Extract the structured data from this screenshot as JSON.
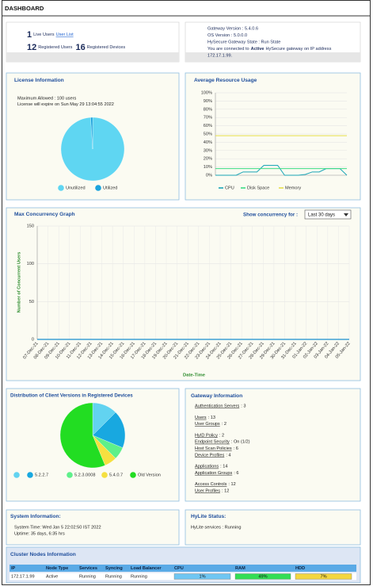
{
  "header": {
    "title": "DASHBOARD"
  },
  "summary": {
    "live_users": 1,
    "live_users_label": "Live Users",
    "user_list": "User List",
    "registered_users": 12,
    "registered_users_label": "Registered Users",
    "registered_devices": 16,
    "registered_devices_label": "Registered Devices"
  },
  "gateway_status": {
    "lines": [
      "Gateway Version : 5.4.0.6",
      "OS Version : 5.0.0.0",
      "HySecure Gateway State : Run State"
    ],
    "connected_prefix": "You are connected to",
    "connected_state": "Active",
    "connected_suffix": "HySecure gateway on IP address",
    "ip": "172.17.1.99."
  },
  "chart_data": [
    {
      "type": "pie",
      "title": "License Information",
      "annotations": [
        "Maximum Allowed : 100 users",
        "License will expire on Sun May 29 13:04:55 2022"
      ],
      "categories": [
        "Unutilized",
        "Utilized"
      ],
      "values": [
        99,
        1
      ],
      "colors": [
        "#5fd6f2",
        "#1ba3dd"
      ]
    },
    {
      "type": "line",
      "title": "Average Resource Usage",
      "ylim": [
        0,
        100
      ],
      "yticks": [
        {
          "value": 0,
          "label": "0%"
        },
        {
          "value": 10,
          "label": "10%"
        },
        {
          "value": 20,
          "label": "20%"
        },
        {
          "value": 30,
          "label": "30%"
        },
        {
          "value": 40,
          "label": "40%"
        },
        {
          "value": 50,
          "label": "50%"
        },
        {
          "value": 60,
          "label": "60%"
        },
        {
          "value": 70,
          "label": "70%"
        },
        {
          "value": 80,
          "label": "80%"
        },
        {
          "value": 90,
          "label": "90%"
        },
        {
          "value": 100,
          "label": "100%"
        }
      ],
      "grid": true,
      "series": [
        {
          "name": "CPU",
          "color": "#1aa6b7",
          "values": [
            0,
            0,
            0,
            0,
            4,
            4,
            4,
            12,
            12,
            12,
            0,
            0,
            0,
            1,
            4,
            4,
            8,
            8,
            8,
            0
          ]
        },
        {
          "name": "Disk Space",
          "color": "#3ddc84",
          "values": [
            8,
            8,
            8,
            8,
            8,
            8,
            8,
            8,
            8,
            8,
            8,
            8,
            8,
            8,
            8,
            8,
            8,
            8,
            8,
            8
          ]
        },
        {
          "name": "Memory",
          "color": "#e6df4a",
          "values": [
            48,
            48,
            48,
            48,
            48,
            48,
            48,
            48,
            48,
            48,
            48,
            48,
            48,
            48,
            48,
            48,
            48,
            48,
            48,
            48
          ]
        }
      ]
    },
    {
      "type": "line",
      "title": "Max Concurrency Graph",
      "control_label": "Show concurrency for :",
      "control_value": "Last 30 days",
      "ylabel": "Number of Concurrent Users",
      "xlabel": "Date-Time",
      "categories": [
        "07-Dec-21",
        "08-Dec-21",
        "09-Dec-21",
        "10-Dec-21",
        "11-Dec-21",
        "12-Dec-21",
        "13-Dec-21",
        "14-Dec-21",
        "15-Dec-21",
        "16-Dec-21",
        "17-Dec-21",
        "18-Dec-21",
        "19-Dec-21",
        "20-Dec-21",
        "21-Dec-21",
        "22-Dec-21",
        "23-Dec-21",
        "24-Dec-21",
        "25-Dec-21",
        "26-Dec-21",
        "27-Dec-21",
        "28-Dec-21",
        "29-Dec-21",
        "30-Dec-21",
        "31-Dec-21",
        "01-Jan-22",
        "02-Jan-22",
        "03-Jan-22",
        "04-Jan-22",
        "05-Jan-22"
      ],
      "values": [
        0,
        0,
        0,
        0,
        0,
        0,
        0,
        0,
        0,
        0,
        0,
        0,
        0,
        0,
        0,
        0,
        0,
        0,
        0,
        0,
        0,
        0,
        0,
        0,
        0,
        0,
        0,
        0,
        0,
        0
      ],
      "color": "#1a8fd0",
      "ylim": [
        0,
        150
      ],
      "yticks": [
        0,
        50,
        100,
        150
      ],
      "grid": true
    },
    {
      "type": "pie",
      "title": "Distribution of Client Versions in Registered Devices",
      "categories": [
        null,
        "5.2.2.7",
        "5.2.3.0008",
        "5.4.0.7",
        "Old Version"
      ],
      "values": [
        2,
        3,
        1,
        1,
        9
      ],
      "colors": [
        "#62d3f0",
        "#18a8e0",
        "#5ef08a",
        "#f5e040",
        "#22dd22"
      ]
    }
  ],
  "gateway_info": {
    "title": "Gateway Information",
    "groups": [
      [
        {
          "label": "Authentication Servers",
          "value": ": 3"
        }
      ],
      [
        {
          "label": "Users",
          "value": ": 13"
        },
        {
          "label": "User Groups",
          "value": ": 2"
        }
      ],
      [
        {
          "label": "HyID Policy",
          "value": ": 2"
        },
        {
          "label": "Endpoint Security",
          "value": ": On (1/2)"
        },
        {
          "label": "Host Scan Policies",
          "value": ": 6"
        },
        {
          "label": "Device Profiles",
          "value": ": 4"
        }
      ],
      [
        {
          "label": "Applications",
          "value": ": 14"
        },
        {
          "label": "Application Groups",
          "value": ": 6"
        }
      ],
      [
        {
          "label": "Access Controls",
          "value": ": 12"
        },
        {
          "label": "User Profiles",
          "value": ": 12"
        }
      ]
    ]
  },
  "system_info": {
    "title": "System Information:",
    "lines": [
      "System Time: Wed Jan 5 22:02:50 IST 2022",
      "Uptime: 35 days, 6:35 hrs"
    ]
  },
  "hylite": {
    "title": "HyLite Status:",
    "status": "HyLite services : Running"
  },
  "cluster": {
    "title": "Cluster Nodes Information",
    "columns": [
      "IP",
      "Node Type",
      "Services",
      "Syncing",
      "Load Balancer",
      "CPU",
      "RAM",
      "HDD"
    ],
    "rows": [
      [
        "172.17.1.99",
        "Active",
        "Running",
        "Running",
        "Running",
        "1%",
        "49%",
        "7%"
      ]
    ]
  }
}
